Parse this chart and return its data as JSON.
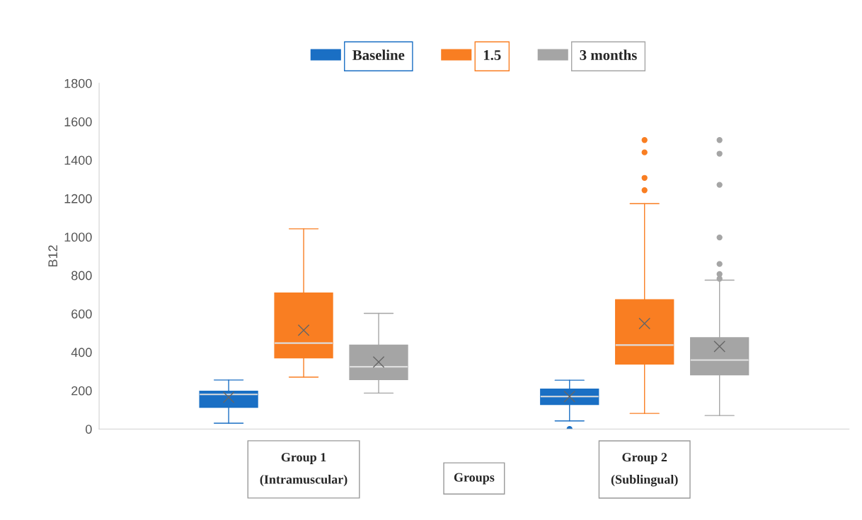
{
  "chart_data": {
    "type": "box",
    "ylabel": "B12",
    "xlabel": "Groups",
    "categories": [
      "Group 1\n(Intramuscular)",
      "Group 2\n(Sublingual)"
    ],
    "ylim": [
      0,
      1800
    ],
    "yticks": [
      0,
      200,
      400,
      600,
      800,
      1000,
      1200,
      1400,
      1600,
      1800
    ],
    "grid": false,
    "legend": "top",
    "series": [
      {
        "name": "Baseline",
        "color": "#1a6fc4",
        "boxes": [
          {
            "low": 30,
            "q1": 113,
            "median": 180,
            "q3": 197,
            "high": 255,
            "mean": 165
          },
          {
            "low": 42,
            "q1": 127,
            "median": 169,
            "q3": 208,
            "high": 254,
            "mean": 169,
            "outliers": [
              0
            ]
          }
        ]
      },
      {
        "name": "1.5",
        "color": "#f97e22",
        "boxes": [
          {
            "low": 270,
            "q1": 370,
            "median": 447,
            "q3": 708,
            "high": 1042,
            "mean": 514
          },
          {
            "low": 81,
            "q1": 338,
            "median": 437,
            "q3": 673,
            "high": 1173,
            "mean": 549,
            "outliers": [
              1504,
              1440,
              1307,
              1243
            ]
          }
        ]
      },
      {
        "name": "3 months",
        "color": "#a5a5a5",
        "boxes": [
          {
            "low": 187,
            "q1": 257,
            "median": 324,
            "q3": 437,
            "high": 602,
            "mean": 349
          },
          {
            "low": 70,
            "q1": 282,
            "median": 359,
            "q3": 475,
            "high": 775,
            "mean": 430,
            "outliers": [
              1504,
              1433,
              1271,
              997,
              859,
              806,
              782
            ]
          }
        ]
      }
    ]
  }
}
